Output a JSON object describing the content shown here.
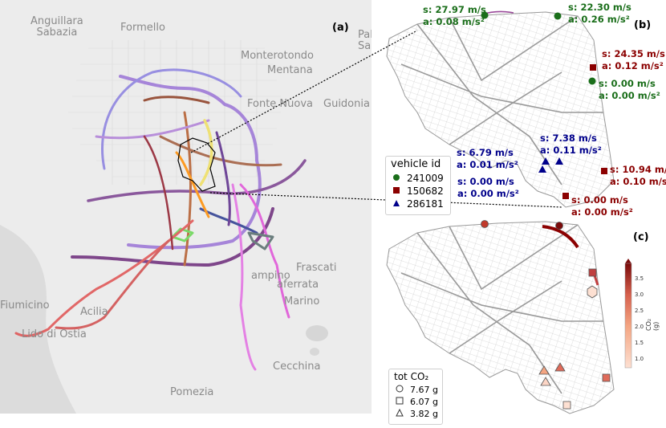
{
  "panels": {
    "a": "(a)",
    "b": "(b)",
    "c": "(c)"
  },
  "places": [
    {
      "name": "Anguillara\nSabazia"
    },
    {
      "name": "Formello"
    },
    {
      "name": "Palor\nSa"
    },
    {
      "name": "Monterotondo"
    },
    {
      "name": "Mentana"
    },
    {
      "name": "Fonte Nuova"
    },
    {
      "name": "Guidonia"
    },
    {
      "name": "Frascati"
    },
    {
      "name": "aferrata"
    },
    {
      "name": "Marino"
    },
    {
      "name": "Fiumicino"
    },
    {
      "name": "Acilia"
    },
    {
      "name": "Lido di Ostia"
    },
    {
      "name": "Pomezia"
    },
    {
      "name": "Cecchina"
    },
    {
      "name": "ampino"
    }
  ],
  "vehicle_legend": {
    "title": "vehicle id",
    "items": [
      {
        "id": "241009",
        "color": "#1a6e1a",
        "shape": "circle"
      },
      {
        "id": "150682",
        "color": "#8b0000",
        "shape": "square"
      },
      {
        "id": "286181",
        "color": "#00008b",
        "shape": "triangle"
      }
    ]
  },
  "speed_annotations": [
    {
      "s": "s: 27.97  m/s",
      "a": "a: 0.08 m/s²",
      "vehicle": "241009"
    },
    {
      "s": "s: 22.30  m/s",
      "a": "a: 0.26  m/s²",
      "vehicle": "241009"
    },
    {
      "s": "s: 24.35  m/s",
      "a": "a: 0.12  m/s²",
      "vehicle": "150682"
    },
    {
      "s": "s: 0.00  m/s",
      "a": "a: 0.00  m/s²",
      "vehicle": "241009"
    },
    {
      "s": "s: 7.38  m/s",
      "a": "a: 0.11  m/s²",
      "vehicle": "286181"
    },
    {
      "s": "s: 6.79  m/s",
      "a": "a: 0.01  m/s²",
      "vehicle": "286181"
    },
    {
      "s": "s: 10.94  m/s",
      "a": "a: 0.10  m/s²",
      "vehicle": "150682"
    },
    {
      "s": "s: 0.00  m/s",
      "a": "a: 0.00  m/s²",
      "vehicle": "286181"
    },
    {
      "s": "s: 0.00  m/s",
      "a": "a: 0.00  m/s²",
      "vehicle": "150682"
    }
  ],
  "co2_legend": {
    "title": "tot CO₂",
    "items": [
      {
        "value": "7.67 g",
        "shape": "circle"
      },
      {
        "value": "6.07 g",
        "shape": "square"
      },
      {
        "value": "3.82 g",
        "shape": "triangle"
      }
    ]
  },
  "colorbar": {
    "label": "CO₂ (g)",
    "ticks": [
      "3.5",
      "3.0",
      "2.5",
      "2.0",
      "1.5",
      "1.0"
    ],
    "color_low": "#fde0d2",
    "color_high": "#7a0a0a"
  }
}
